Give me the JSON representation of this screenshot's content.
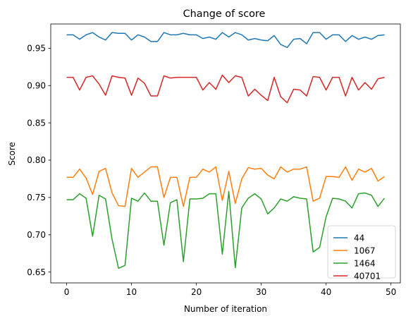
{
  "chart_data": {
    "type": "line",
    "title": "Change of score",
    "xlabel": "Number of iteration",
    "ylabel": "Score",
    "xlim": [
      -2.45,
      51.45
    ],
    "ylim": [
      0.6355,
      0.9825
    ],
    "xticks": [
      0,
      10,
      20,
      30,
      40,
      50
    ],
    "yticks": [
      0.65,
      0.7,
      0.75,
      0.8,
      0.85,
      0.9,
      0.95
    ],
    "ytick_labels": [
      "0.65",
      "0.70",
      "0.75",
      "0.80",
      "0.85",
      "0.90",
      "0.95"
    ],
    "grid": false,
    "legend_position": "lower-right",
    "x": [
      0,
      1,
      2,
      3,
      4,
      5,
      6,
      7,
      8,
      9,
      10,
      11,
      12,
      13,
      14,
      15,
      16,
      17,
      18,
      19,
      20,
      21,
      22,
      23,
      24,
      25,
      26,
      27,
      28,
      29,
      30,
      31,
      32,
      33,
      34,
      35,
      36,
      37,
      38,
      39,
      40,
      41,
      42,
      43,
      44,
      45,
      46,
      47,
      48,
      49
    ],
    "series": [
      {
        "name": "44",
        "color": "#1f77b4",
        "values": [
          0.968,
          0.968,
          0.962,
          0.968,
          0.971,
          0.965,
          0.961,
          0.971,
          0.97,
          0.97,
          0.961,
          0.968,
          0.965,
          0.959,
          0.959,
          0.971,
          0.968,
          0.968,
          0.97,
          0.968,
          0.968,
          0.963,
          0.965,
          0.962,
          0.971,
          0.965,
          0.971,
          0.968,
          0.961,
          0.963,
          0.961,
          0.96,
          0.967,
          0.955,
          0.951,
          0.962,
          0.963,
          0.956,
          0.971,
          0.971,
          0.962,
          0.968,
          0.968,
          0.959,
          0.967,
          0.962,
          0.965,
          0.962,
          0.967,
          0.968
        ]
      },
      {
        "name": "1067",
        "color": "#ff7f0e",
        "values": [
          0.777,
          0.777,
          0.788,
          0.776,
          0.754,
          0.785,
          0.789,
          0.756,
          0.739,
          0.738,
          0.789,
          0.777,
          0.784,
          0.791,
          0.791,
          0.75,
          0.777,
          0.777,
          0.738,
          0.777,
          0.777,
          0.788,
          0.784,
          0.791,
          0.746,
          0.785,
          0.742,
          0.775,
          0.79,
          0.788,
          0.789,
          0.78,
          0.775,
          0.791,
          0.784,
          0.788,
          0.788,
          0.791,
          0.745,
          0.749,
          0.778,
          0.778,
          0.777,
          0.791,
          0.773,
          0.788,
          0.784,
          0.789,
          0.772,
          0.778
        ]
      },
      {
        "name": "1464",
        "color": "#2ca02c",
        "values": [
          0.747,
          0.747,
          0.755,
          0.749,
          0.698,
          0.753,
          0.748,
          0.694,
          0.655,
          0.659,
          0.749,
          0.745,
          0.756,
          0.745,
          0.745,
          0.686,
          0.743,
          0.747,
          0.664,
          0.748,
          0.748,
          0.749,
          0.755,
          0.755,
          0.674,
          0.758,
          0.656,
          0.736,
          0.749,
          0.755,
          0.748,
          0.728,
          0.736,
          0.748,
          0.745,
          0.751,
          0.749,
          0.748,
          0.677,
          0.683,
          0.724,
          0.749,
          0.748,
          0.745,
          0.736,
          0.755,
          0.756,
          0.753,
          0.738,
          0.749
        ]
      },
      {
        "name": "40701",
        "color": "#d62728",
        "values": [
          0.911,
          0.911,
          0.894,
          0.911,
          0.913,
          0.902,
          0.887,
          0.913,
          0.911,
          0.91,
          0.887,
          0.91,
          0.903,
          0.886,
          0.886,
          0.913,
          0.91,
          0.911,
          0.911,
          0.911,
          0.911,
          0.894,
          0.904,
          0.895,
          0.914,
          0.904,
          0.913,
          0.911,
          0.886,
          0.895,
          0.887,
          0.88,
          0.911,
          0.885,
          0.877,
          0.895,
          0.894,
          0.886,
          0.912,
          0.911,
          0.894,
          0.911,
          0.911,
          0.886,
          0.911,
          0.894,
          0.904,
          0.895,
          0.909,
          0.911
        ]
      }
    ]
  }
}
